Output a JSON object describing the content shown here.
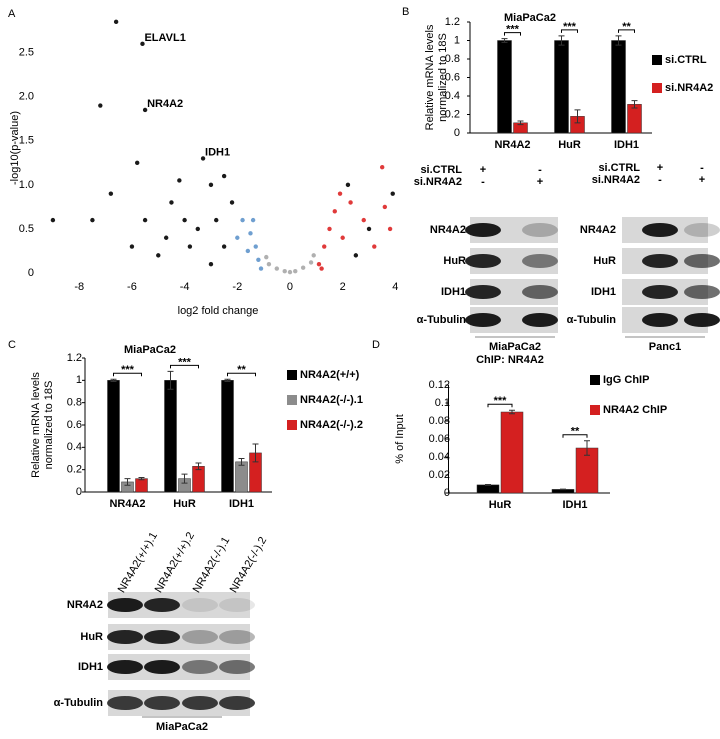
{
  "panel_labels": [
    "A",
    "B",
    "C",
    "D"
  ],
  "chart_data": [
    {
      "type": "scatter",
      "xlabel": "log2 fold change",
      "ylabel": "-log10(p-value)",
      "xlim": [
        -9.3,
        4.1
      ],
      "ylim": [
        0,
        2.95
      ],
      "xticks": [
        -8,
        -6,
        -4,
        -2,
        0,
        2,
        4
      ],
      "yticks": [
        0,
        0.5,
        {
          "value": 1,
          "label": "1.0"
        },
        1.5,
        {
          "value": 2,
          "label": "2.0"
        },
        2.5
      ],
      "series": [
        {
          "color": "#b0b0b0",
          "x": [
            -0.8,
            -0.5,
            -0.2,
            0.2,
            0.5,
            0.8,
            0,
            -0.9,
            0.9
          ],
          "values": [
            0.1,
            0.05,
            0.02,
            0.02,
            0.06,
            0.12,
            0.01,
            0.18,
            0.2
          ]
        },
        {
          "color": "#6f9fd0",
          "x": [
            -1.2,
            -1.3,
            -1.5,
            -1.6,
            -1.8,
            -1.4,
            -2.0,
            -1.1
          ],
          "values": [
            0.15,
            0.3,
            0.45,
            0.25,
            0.6,
            0.6,
            0.4,
            0.05
          ]
        },
        {
          "color": "#e03a3a",
          "x": [
            1.1,
            1.3,
            1.5,
            1.7,
            2.0,
            2.3,
            1.9,
            2.8,
            3.5,
            3.6,
            3.8,
            3.2,
            1.2
          ],
          "values": [
            0.1,
            0.3,
            0.5,
            0.7,
            0.4,
            0.8,
            0.9,
            0.6,
            1.2,
            0.75,
            0.5,
            0.3,
            0.05
          ]
        },
        {
          "color": "#1a1a1a",
          "x": [
            -3,
            -2.5,
            -3.5,
            -4,
            -2.2,
            -3,
            -4.5,
            -5.5,
            -6,
            -5,
            -2.8,
            -3.8,
            -2.5,
            -4.2,
            -3.3,
            -5.8,
            -5.5,
            -5.6,
            -7.2,
            -6.6,
            -9,
            -7.5,
            -6.8,
            -4.7,
            2.5,
            3,
            2.2,
            3.9
          ],
          "values": [
            0.1,
            0.3,
            0.5,
            0.6,
            0.8,
            1.0,
            0.8,
            0.6,
            0.3,
            0.2,
            0.6,
            0.3,
            1.1,
            1.05,
            1.3,
            1.25,
            1.85,
            2.6,
            1.9,
            2.85,
            0.6,
            0.6,
            0.9,
            0.4,
            0.2,
            0.5,
            1.0,
            0.9
          ]
        }
      ],
      "annotations": [
        {
          "text": "ELAVL1",
          "x": -5.6,
          "y": 2.6
        },
        {
          "text": "NR4A2",
          "x": -5.5,
          "y": 1.85
        },
        {
          "text": "IDH1",
          "x": -3.3,
          "y": 1.3
        }
      ]
    },
    {
      "type": "bar",
      "title": "MiaPaCa2",
      "ylabel": [
        "Relative mRNA levels",
        "normalized to 18S"
      ],
      "categories": [
        "NR4A2",
        "HuR",
        "IDH1"
      ],
      "ylim": [
        0,
        1.2
      ],
      "yticks": [
        0,
        0.2,
        0.4,
        0.6,
        0.8,
        1,
        1.2
      ],
      "series": [
        {
          "name": "si.CTRL",
          "color": "#000000",
          "values": [
            1,
            1,
            1
          ],
          "errors": [
            0.02,
            0.05,
            0.05
          ]
        },
        {
          "name": "si.NR4A2",
          "color": "#d42020",
          "values": [
            0.11,
            0.18,
            0.31
          ],
          "errors": [
            0.02,
            0.07,
            0.04
          ]
        }
      ],
      "significance": [
        "***",
        "***",
        "**"
      ]
    },
    {
      "type": "bar",
      "title": "MiaPaCa2",
      "ylabel": [
        "Relative mRNA levels",
        "normalized to 18S"
      ],
      "categories": [
        "NR4A2",
        "HuR",
        "IDH1"
      ],
      "ylim": [
        0,
        1.2
      ],
      "yticks": [
        0,
        0.2,
        0.4,
        0.6,
        0.8,
        1,
        1.2
      ],
      "series": [
        {
          "name": "NR4A2(+/+)",
          "color": "#000000",
          "values": [
            1,
            1,
            1
          ],
          "errors": [
            0.01,
            0.08,
            0.01
          ]
        },
        {
          "name": "NR4A2(-/-).1",
          "color": "#8c8c8c",
          "values": [
            0.09,
            0.12,
            0.27
          ],
          "errors": [
            0.03,
            0.04,
            0.03
          ]
        },
        {
          "name": "NR4A2(-/-).2",
          "color": "#d42020",
          "values": [
            0.12,
            0.23,
            0.35
          ],
          "errors": [
            0.01,
            0.03,
            0.08
          ]
        }
      ],
      "significance": [
        "***",
        "***",
        "**"
      ]
    },
    {
      "type": "bar",
      "title": "ChIP: NR4A2",
      "ylabel": [
        "% of Input"
      ],
      "categories": [
        "HuR",
        "IDH1"
      ],
      "ylim": [
        0,
        0.12
      ],
      "yticks": [
        0,
        0.02,
        0.04,
        0.06,
        0.08,
        0.1,
        0.12
      ],
      "series": [
        {
          "name": "IgG ChIP",
          "color": "#000000",
          "values": [
            0.009,
            0.004
          ],
          "errors": [
            0.0005,
            0.0003
          ]
        },
        {
          "name": "NR4A2 ChIP",
          "color": "#d42020",
          "values": [
            0.09,
            0.05
          ],
          "errors": [
            0.002,
            0.008
          ]
        }
      ],
      "significance": [
        "***",
        "**"
      ]
    }
  ],
  "blots": [
    {
      "conditions": [
        {
          "name": "si.CTRL",
          "signs": [
            "+",
            "-"
          ]
        },
        {
          "name": "si.NR4A2",
          "signs": [
            "-",
            "+"
          ]
        }
      ],
      "rows": [
        "NR4A2",
        "HuR",
        "IDH1",
        "α-Tubulin"
      ],
      "cell_line": "MiaPaCa2"
    },
    {
      "conditions": [
        {
          "name": "si.CTRL",
          "signs": [
            "+",
            "-"
          ]
        },
        {
          "name": "si.NR4A2",
          "signs": [
            "-",
            "+"
          ]
        }
      ],
      "rows": [
        "NR4A2",
        "HuR",
        "IDH1",
        "α-Tubulin"
      ],
      "cell_line": "Panc1"
    },
    {
      "lanes": [
        "NR4A2(+/+).1",
        "NR4A2(+/+).2",
        "NR4A2(-/-).1",
        "NR4A2(-/-).2"
      ],
      "rows": [
        "NR4A2",
        "HuR",
        "IDH1",
        "α-Tubulin"
      ],
      "cell_line": "MiaPaCa2"
    }
  ]
}
